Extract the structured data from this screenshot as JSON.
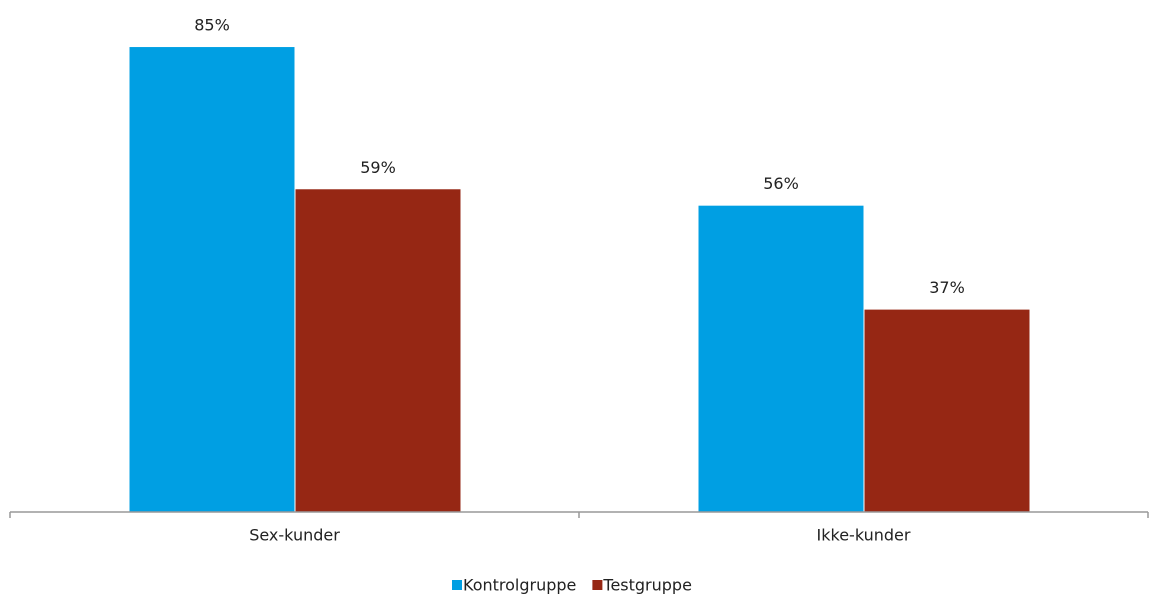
{
  "chart_data": {
    "type": "bar",
    "categories": [
      "Sex-kunder",
      "Ikke-kunder"
    ],
    "series": [
      {
        "name": "Kontrolgruppe",
        "color": "#009fe3",
        "values": [
          85,
          56
        ],
        "value_labels": [
          "85%",
          "56%"
        ]
      },
      {
        "name": "Testgruppe",
        "color": "#962714",
        "values": [
          59,
          37
        ],
        "value_labels": [
          "59%",
          "37%"
        ]
      }
    ],
    "legend": "bottom"
  }
}
